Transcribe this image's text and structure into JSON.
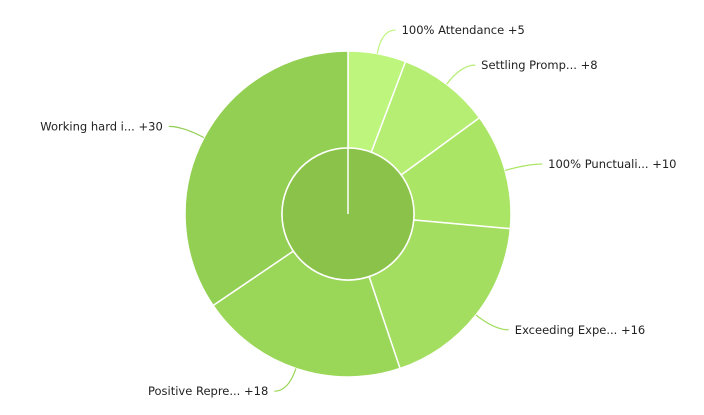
{
  "chart_data": {
    "type": "sunburst",
    "categories": [
      "100% Attendance",
      "Settling Promp...",
      "100% Punctuali...",
      "Exceeding Expe...",
      "Positive Repre...",
      "Working hard i..."
    ],
    "values": [
      5,
      8,
      10,
      16,
      18,
      30
    ],
    "value_labels": [
      "+5",
      "+8",
      "+10",
      "+16",
      "+18",
      "+30"
    ],
    "colors": [
      "#bef57c",
      "#b5ee72",
      "#abe566",
      "#a3de60",
      "#9ad759",
      "#92cf52"
    ],
    "center_color": "#8bc34a"
  }
}
